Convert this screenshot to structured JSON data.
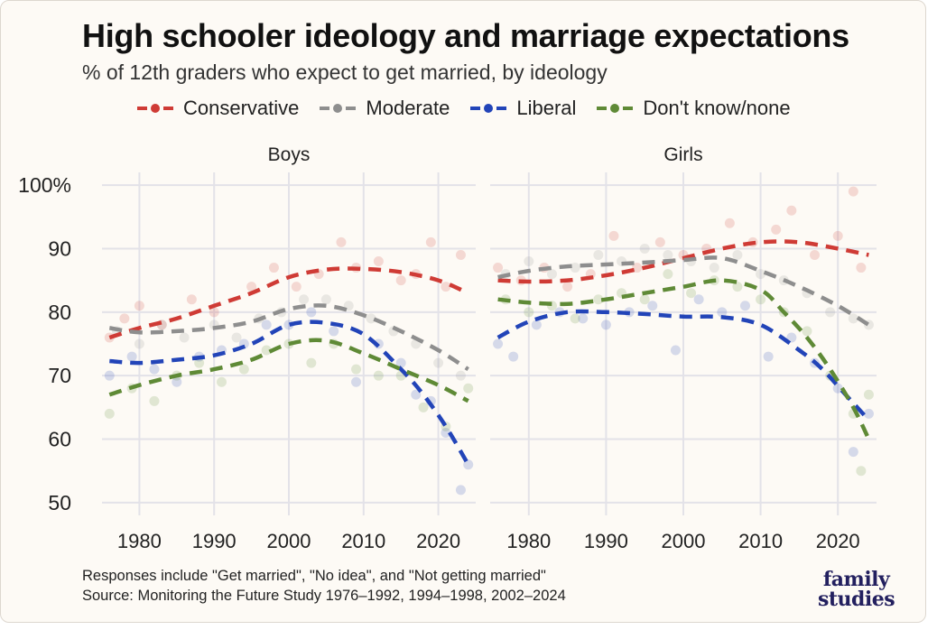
{
  "header": {
    "title": "High schooler ideology and marriage expectations",
    "subtitle": "% of 12th graders who expect to get married, by ideology"
  },
  "footer": {
    "note": "Responses include \"Get married\", \"No idea\", and \"Not getting married\"",
    "source": "Source: Monitoring the Future Study 1976–1992, 1994–1998, 2002–2024",
    "logo_line1": "family",
    "logo_line2": "studies"
  },
  "colors": {
    "conservative": "#cf3b35",
    "moderate": "#8e8e8e",
    "liberal": "#2244b8",
    "dontknow": "#5f8a36"
  },
  "chart_data": {
    "type": "line",
    "title": "High schooler ideology and marriage expectations",
    "subtitle": "% of 12th graders who expect to get married, by ideology",
    "legend_position": "top",
    "grid": true,
    "xlim": [
      1975,
      2025
    ],
    "ylim": [
      48,
      102
    ],
    "xticks": [
      1980,
      1990,
      2000,
      2010,
      2020
    ],
    "yticks": [
      50,
      60,
      70,
      80,
      90,
      100
    ],
    "ytick_labels": [
      "50",
      "60",
      "70",
      "80",
      "90",
      "100%"
    ],
    "series_legend": [
      "Conservative",
      "Moderate",
      "Liberal",
      "Don't know/none"
    ],
    "panels": [
      {
        "name": "Boys",
        "series": [
          {
            "name": "Conservative",
            "x": [
              1976,
              1980,
              1985,
              1990,
              1995,
              2000,
              2005,
              2010,
              2015,
              2020,
              2024
            ],
            "values": [
              76,
              77.5,
              79,
              81,
              83,
              85.5,
              86.7,
              86.8,
              86.3,
              85,
              83
            ]
          },
          {
            "name": "Moderate",
            "x": [
              1976,
              1980,
              1985,
              1990,
              1995,
              2000,
              2005,
              2010,
              2015,
              2020,
              2024
            ],
            "values": [
              77.5,
              76.8,
              77,
              77.5,
              78.5,
              80.5,
              81,
              79.5,
              77,
              74,
              71
            ]
          },
          {
            "name": "Liberal",
            "x": [
              1976,
              1980,
              1985,
              1990,
              1995,
              2000,
              2005,
              2010,
              2015,
              2018,
              2021,
              2024
            ],
            "values": [
              72.3,
              72,
              72.5,
              73.2,
              75,
              78,
              78.3,
              76.5,
              71,
              67,
              62,
              56
            ]
          },
          {
            "name": "Don't know/none",
            "x": [
              1976,
              1980,
              1985,
              1990,
              1995,
              2000,
              2005,
              2010,
              2015,
              2020,
              2024
            ],
            "values": [
              67,
              68.5,
              70,
              71,
              72.5,
              75,
              75.5,
              73.5,
              71,
              68.5,
              66
            ]
          }
        ],
        "points": [
          {
            "name": "Conservative",
            "x": [
              1976,
              1978,
              1980,
              1983,
              1987,
              1990,
              1995,
              1998,
              2001,
              2004,
              2007,
              2009,
              2012,
              2015,
              2017,
              2019,
              2021,
              2023
            ],
            "values": [
              76,
              79,
              81,
              78,
              82,
              80,
              84,
              87,
              84,
              86,
              91,
              87,
              88,
              85,
              86,
              91,
              84,
              89
            ]
          },
          {
            "name": "Moderate",
            "x": [
              1977,
              1980,
              1983,
              1986,
              1990,
              1993,
              1996,
              1999,
              2002,
              2005,
              2008,
              2011,
              2014,
              2017,
              2020,
              2023
            ],
            "values": [
              77,
              75,
              78,
              76,
              78,
              76,
              79,
              80,
              82,
              82,
              81,
              79,
              77,
              75,
              72,
              70
            ]
          },
          {
            "name": "Liberal",
            "x": [
              1976,
              1979,
              1982,
              1985,
              1988,
              1991,
              1994,
              1997,
              2000,
              2003,
              2006,
              2009,
              2012,
              2015,
              2017,
              2019,
              2021,
              2023,
              2024
            ],
            "values": [
              70,
              73,
              71,
              69,
              73,
              74,
              75,
              78,
              78,
              80,
              77,
              69,
              75,
              72,
              67,
              66,
              61,
              52,
              56
            ]
          },
          {
            "name": "Don't know/none",
            "x": [
              1976,
              1979,
              1982,
              1985,
              1988,
              1991,
              1994,
              1997,
              2000,
              2003,
              2006,
              2009,
              2012,
              2015,
              2018,
              2021,
              2024
            ],
            "values": [
              64,
              68,
              66,
              70,
              72,
              69,
              71,
              74,
              75,
              72,
              75,
              71,
              70,
              70,
              65,
              62,
              68
            ]
          }
        ]
      },
      {
        "name": "Girls",
        "series": [
          {
            "name": "Conservative",
            "x": [
              1976,
              1980,
              1985,
              1990,
              1995,
              2000,
              2005,
              2010,
              2015,
              2020,
              2024
            ],
            "values": [
              85,
              84.8,
              85,
              85.8,
              87,
              88.5,
              90,
              91,
              91,
              90,
              89
            ]
          },
          {
            "name": "Moderate",
            "x": [
              1976,
              1980,
              1985,
              1990,
              1995,
              2000,
              2005,
              2010,
              2015,
              2020,
              2024
            ],
            "values": [
              85.5,
              86.5,
              87.2,
              87.5,
              87.8,
              88.2,
              88.5,
              86.5,
              84,
              81,
              78
            ]
          },
          {
            "name": "Liberal",
            "x": [
              1976,
              1980,
              1985,
              1990,
              1995,
              2000,
              2005,
              2010,
              2015,
              2018,
              2021,
              2024
            ],
            "values": [
              76,
              78.5,
              80,
              80,
              79.7,
              79.3,
              79.2,
              78,
              74,
              71,
              67,
              63
            ]
          },
          {
            "name": "Don't know/none",
            "x": [
              1976,
              1980,
              1985,
              1990,
              1995,
              2000,
              2005,
              2010,
              2013,
              2016,
              2019,
              2022,
              2024
            ],
            "values": [
              82,
              81.5,
              81.3,
              82,
              83,
              84,
              85,
              83.5,
              80,
              76,
              71,
              65,
              60
            ]
          }
        ],
        "points": [
          {
            "name": "Conservative",
            "x": [
              1976,
              1979,
              1982,
              1985,
              1988,
              1991,
              1994,
              1997,
              2000,
              2003,
              2006,
              2009,
              2012,
              2014,
              2017,
              2020,
              2022,
              2023
            ],
            "values": [
              87,
              85,
              87,
              84,
              86,
              92,
              87,
              91,
              89,
              90,
              94,
              91,
              93,
              96,
              89,
              92,
              99,
              87
            ]
          },
          {
            "name": "Moderate",
            "x": [
              1977,
              1980,
              1983,
              1986,
              1989,
              1992,
              1995,
              1998,
              2001,
              2004,
              2007,
              2010,
              2013,
              2016,
              2019,
              2022,
              2024
            ],
            "values": [
              86,
              88,
              86,
              87,
              89,
              88,
              90,
              89,
              88,
              87,
              89,
              86,
              85,
              83,
              80,
              79,
              78
            ]
          },
          {
            "name": "Liberal",
            "x": [
              1976,
              1978,
              1981,
              1984,
              1987,
              1990,
              1993,
              1996,
              1999,
              2002,
              2005,
              2008,
              2011,
              2014,
              2017,
              2020,
              2022,
              2024
            ],
            "values": [
              75,
              73,
              78,
              80,
              79,
              78,
              80,
              81,
              74,
              82,
              80,
              81,
              73,
              76,
              72,
              68,
              58,
              64
            ]
          },
          {
            "name": "Don't know/none",
            "x": [
              1977,
              1980,
              1983,
              1986,
              1989,
              1992,
              1995,
              1998,
              2001,
              2004,
              2007,
              2010,
              2013,
              2016,
              2019,
              2022,
              2023,
              2024
            ],
            "values": [
              82,
              80,
              81,
              79,
              82,
              83,
              82,
              86,
              83,
              85,
              84,
              82,
              80,
              77,
              70,
              64,
              55,
              67
            ]
          }
        ]
      }
    ]
  }
}
